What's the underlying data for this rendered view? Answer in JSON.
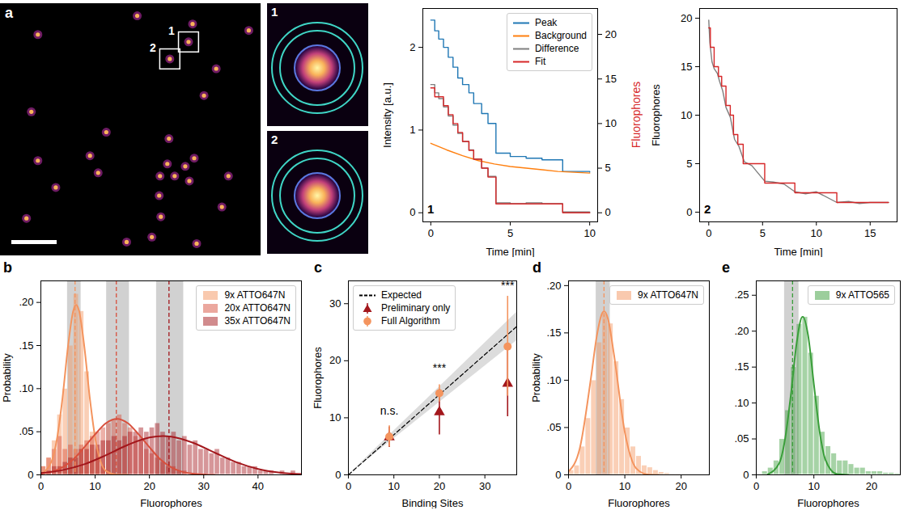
{
  "chart_data": [
    {
      "type": "image",
      "panel": "a",
      "tick_labels": false,
      "xlim": [
        0,
        320
      ],
      "ylim": [
        0,
        310
      ],
      "points": {
        "x": [
          168,
          236,
          305,
          46,
          231,
          208,
          265,
          250,
          38,
          130,
          207,
          110,
          46,
          120,
          238,
          205,
          227,
          196,
          214,
          232,
          68,
          195,
          280,
          272,
          32,
          197,
          186,
          155,
          241
        ],
        "y": [
          295,
          285,
          277,
          272,
          263,
          242,
          230,
          197,
          177,
          152,
          144,
          123,
          117,
          102,
          120,
          113,
          110,
          98,
          98,
          92,
          84,
          74,
          98,
          60,
          46,
          48,
          23,
          17,
          15
        ]
      },
      "boxes": [
        {
          "label": "1",
          "x": 231,
          "y": 263
        },
        {
          "label": "2",
          "x": 208,
          "y": 242
        }
      ],
      "insets": [
        "1",
        "2"
      ]
    },
    {
      "type": "line",
      "label": "1",
      "xlabel": "Time [min]",
      "ylabel": "Intensity [a.u.]",
      "y2label": "Fluorophores",
      "xlim": [
        -0.5,
        10.5
      ],
      "xticks": [
        0,
        5,
        10
      ],
      "ylim": [
        -0.11,
        2.47
      ],
      "yticks": [
        0,
        1,
        2
      ],
      "y2lim": [
        -1.02,
        22.9
      ],
      "y2ticks": [
        0,
        5,
        10,
        15,
        20
      ],
      "legend": "top-right",
      "series": [
        {
          "name": "Peak",
          "color": "#1f77b4",
          "line_style": "step",
          "x": [
            0,
            0.25,
            0.5,
            0.8,
            1.1,
            1.4,
            1.7,
            2.0,
            2.4,
            2.7,
            3.2,
            3.6,
            4.1,
            5.0,
            6.0,
            7.0,
            8.3,
            10.0
          ],
          "values": [
            2.33,
            2.2,
            2.1,
            2.0,
            1.88,
            1.76,
            1.63,
            1.55,
            1.45,
            1.32,
            1.2,
            1.08,
            0.72,
            0.68,
            0.66,
            0.64,
            0.5,
            0.49
          ]
        },
        {
          "name": "Background",
          "color": "#ff7f0e",
          "line_style": "solid",
          "x": [
            0,
            0.5,
            1,
            2,
            3,
            4,
            5,
            6,
            7,
            8,
            9,
            10
          ],
          "values": [
            0.84,
            0.8,
            0.76,
            0.69,
            0.63,
            0.59,
            0.56,
            0.54,
            0.52,
            0.5,
            0.49,
            0.48
          ]
        },
        {
          "name": "Difference",
          "color": "#7f7f7f",
          "line_style": "step",
          "x": [
            0,
            0.25,
            0.5,
            0.8,
            1.1,
            1.4,
            1.7,
            2.0,
            2.4,
            2.7,
            3.2,
            3.6,
            4.1,
            5.0,
            6.0,
            7.0,
            8.3,
            10.0
          ],
          "values": [
            1.55,
            1.45,
            1.38,
            1.28,
            1.17,
            1.06,
            0.96,
            0.86,
            0.76,
            0.65,
            0.54,
            0.44,
            0.12,
            0.11,
            0.12,
            0.11,
            0.01,
            0.0
          ]
        },
        {
          "name": "Fit",
          "color": "#d62728",
          "line_style": "step",
          "axis": "y2",
          "x": [
            0,
            0.25,
            0.5,
            0.8,
            1.1,
            1.4,
            1.7,
            2.0,
            2.4,
            2.7,
            3.2,
            3.6,
            4.1,
            8.3,
            10.0
          ],
          "values": [
            14,
            13,
            13,
            12,
            11,
            10,
            9,
            8,
            7,
            6,
            5,
            4,
            1,
            0,
            0
          ]
        }
      ]
    },
    {
      "type": "line",
      "label": "2",
      "xlabel": "Time [min]",
      "ylabel": "Fluorophores",
      "xlim": [
        -0.85,
        17.5
      ],
      "xticks": [
        0,
        5,
        10,
        15
      ],
      "ylim": [
        -1,
        21
      ],
      "yticks": [
        0,
        5,
        10,
        15,
        20
      ],
      "series": [
        {
          "color": "#7f7f7f",
          "line_style": "solid",
          "x": [
            0,
            0.1,
            0.3,
            0.5,
            0.8,
            1.0,
            1.3,
            1.6,
            2.0,
            2.4,
            2.8,
            3.3,
            4.0,
            5.2,
            6.0,
            7.0,
            8.0,
            9.0,
            10.0,
            11.9,
            13.0,
            14.0,
            15.0,
            16.7
          ],
          "values": [
            19.8,
            17.5,
            15.5,
            14.8,
            14.3,
            13.5,
            12.5,
            10.8,
            9.8,
            7.5,
            6.8,
            5.2,
            4.8,
            3.2,
            3.1,
            2.9,
            2.1,
            1.9,
            2.1,
            1.0,
            1.1,
            0.9,
            1.0,
            1.0
          ]
        },
        {
          "color": "#d62728",
          "line_style": "step",
          "x": [
            0,
            0.15,
            0.5,
            0.9,
            1.2,
            1.6,
            2.0,
            2.3,
            2.7,
            3.2,
            5.2,
            8.0,
            11.9,
            16.7
          ],
          "values": [
            19,
            17,
            15,
            14,
            13,
            11,
            10,
            8,
            7,
            5,
            3,
            2,
            1,
            1
          ]
        }
      ]
    },
    {
      "type": "histogram",
      "panel": "b",
      "xlabel": "Fluorophores",
      "ylabel": "Probability",
      "xlim": [
        0,
        48
      ],
      "xticks": [
        0,
        10,
        20,
        30,
        40
      ],
      "ylim": [
        0,
        0.225
      ],
      "yticks": [
        0,
        {
          "value": 0.05,
          "label": ".05"
        },
        {
          "value": 0.1,
          "label": ".10"
        },
        {
          "value": 0.15,
          "label": ".15"
        },
        {
          "value": 0.2,
          "label": ".20"
        }
      ],
      "legend": "top-right",
      "bins": [
        0,
        1,
        2,
        3,
        4,
        5,
        6,
        7,
        8,
        9,
        10,
        11,
        12,
        13,
        14,
        15,
        16,
        17,
        18,
        19,
        20,
        21,
        22,
        23,
        24,
        25,
        26,
        27,
        28,
        29,
        30,
        31,
        32,
        33,
        34,
        35,
        36,
        37,
        38,
        39,
        40,
        41,
        42,
        43,
        44,
        45,
        46,
        47,
        48
      ],
      "series": [
        {
          "name": "9x ATTO647N",
          "color": "#f4945e",
          "values": [
            0.01,
            0.02,
            0.04,
            0.07,
            0.1,
            0.15,
            0.21,
            0.19,
            0.12,
            0.05,
            0.03,
            0.01,
            0.005,
            0,
            0,
            0,
            0,
            0,
            0,
            0,
            0,
            0,
            0,
            0,
            0,
            0,
            0,
            0,
            0,
            0,
            0,
            0,
            0,
            0,
            0,
            0,
            0,
            0,
            0,
            0,
            0,
            0,
            0,
            0,
            0,
            0,
            0,
            0
          ],
          "fit": {
            "x": [
              0,
              2,
              3,
              4,
              5,
              6,
              6.5,
              7,
              8,
              9,
              10,
              12,
              14,
              16
            ],
            "values": [
              0.001,
              0.016,
              0.043,
              0.09,
              0.149,
              0.191,
              0.197,
              0.191,
              0.149,
              0.09,
              0.043,
              0.0045,
              0.0002,
              0
            ]
          },
          "reference": 6.3,
          "reference_band": [
            4.9,
            7.4
          ]
        },
        {
          "name": "20x ATTO647N",
          "color": "#d8503d",
          "values": [
            0.01,
            0.02,
            0.03,
            0.045,
            0.03,
            0.035,
            0.03,
            0.035,
            0.04,
            0.045,
            0.05,
            0.055,
            0.06,
            0.065,
            0.07,
            0.06,
            0.055,
            0.045,
            0.04,
            0.03,
            0.025,
            0.02,
            0.015,
            0.01,
            0.01,
            0.005,
            0.005,
            0,
            0,
            0,
            0,
            0,
            0,
            0,
            0,
            0,
            0,
            0,
            0,
            0,
            0,
            0,
            0,
            0,
            0,
            0,
            0,
            0
          ],
          "fit": {
            "x": [
              0,
              2,
              4,
              6,
              8,
              10,
              12,
              14,
              16,
              18,
              20,
              22,
              24,
              26,
              28,
              30,
              32
            ],
            "values": [
              0.0013,
              0.0036,
              0.0088,
              0.018,
              0.032,
              0.047,
              0.06,
              0.065,
              0.06,
              0.047,
              0.032,
              0.018,
              0.0088,
              0.0036,
              0.0013,
              0.0004,
              0.0001
            ]
          },
          "reference": 13.9,
          "reference_band": [
            12.1,
            16.3
          ]
        },
        {
          "name": "35x ATTO647N",
          "color": "#a3171c",
          "values": [
            0,
            0.005,
            0.01,
            0.01,
            0.015,
            0.02,
            0.02,
            0.03,
            0.03,
            0.035,
            0.035,
            0.04,
            0.04,
            0.045,
            0.04,
            0.045,
            0.05,
            0.05,
            0.055,
            0.05,
            0.055,
            0.06,
            0.05,
            0.045,
            0.05,
            0.04,
            0.045,
            0.035,
            0.04,
            0.03,
            0.03,
            0.025,
            0.03,
            0.02,
            0.02,
            0.015,
            0.015,
            0.01,
            0.01,
            0.01,
            0.005,
            0.005,
            0.005,
            0,
            0.005,
            0,
            0.005,
            0
          ],
          "fit": {
            "x": [
              0,
              4,
              8,
              12,
              16,
              20,
              22.5,
              24,
              28,
              32,
              36,
              40,
              44,
              48
            ],
            "values": [
              0.002,
              0.0055,
              0.0123,
              0.0228,
              0.0347,
              0.0433,
              0.045,
              0.0444,
              0.0373,
              0.0258,
              0.0146,
              0.0068,
              0.0026,
              0.0008
            ]
          },
          "reference": 23.6,
          "reference_band": [
            21.3,
            26.3
          ]
        }
      ]
    },
    {
      "type": "scatter",
      "panel": "c",
      "xlabel": "Binding Sites",
      "ylabel": "Fluorophores",
      "xlim": [
        0,
        37
      ],
      "xticks": [
        0,
        10,
        20,
        30
      ],
      "ylim": [
        0,
        34
      ],
      "yticks": [
        0,
        10,
        20,
        30
      ],
      "legend": "top-left",
      "series": [
        {
          "name": "Expected",
          "type": "line",
          "line_style": "dashed",
          "color": "#000000",
          "x": [
            0,
            37
          ],
          "values": [
            0,
            26
          ],
          "band_low": [
            0,
            23.5
          ],
          "band_high": [
            0,
            28.5
          ]
        },
        {
          "name": "Preliminary only",
          "marker": "triangle",
          "color": "#a3171c",
          "x": [
            9,
            20,
            35
          ],
          "values": [
            6.6,
            11,
            16
          ],
          "error_low": [
            4.8,
            7,
            10.2
          ],
          "error_high": [
            8.4,
            15,
            22
          ]
        },
        {
          "name": "Full Algorithm",
          "marker": "circle",
          "color": "#f4945e",
          "x": [
            9,
            20,
            35
          ],
          "values": [
            6.7,
            14.3,
            22.5
          ],
          "error_low": [
            4.9,
            12.8,
            13.8
          ],
          "error_high": [
            8.6,
            15.8,
            31.3
          ]
        }
      ],
      "annotations": [
        {
          "text": "n.s.",
          "x": 9,
          "y": 10.5
        },
        {
          "text": "***",
          "x": 20,
          "y": 18
        },
        {
          "text": "***",
          "x": 35,
          "y": 32.5
        }
      ]
    },
    {
      "type": "histogram",
      "panel": "d",
      "xlabel": "Fluorophores",
      "ylabel": "Probability",
      "xlim": [
        0,
        25
      ],
      "xticks": [
        0,
        10,
        20
      ],
      "ylim": [
        0,
        0.205
      ],
      "yticks": [
        0,
        {
          "value": 0.05,
          "label": ".05"
        },
        {
          "value": 0.1,
          "label": ".10"
        },
        {
          "value": 0.15,
          "label": ".15"
        },
        {
          "value": 0.2,
          "label": ".20"
        }
      ],
      "legend": "top-right",
      "bins": [
        0,
        1,
        2,
        3,
        4,
        5,
        6,
        7,
        8,
        9,
        10,
        11,
        12,
        13,
        14,
        15,
        16,
        17,
        18,
        19,
        20,
        21,
        22,
        23,
        24,
        25
      ],
      "series": [
        {
          "name": "9x ATTO647N",
          "color": "#f4945e",
          "values": [
            0.005,
            0.01,
            0.03,
            0.06,
            0.1,
            0.14,
            0.17,
            0.16,
            0.12,
            0.08,
            0.05,
            0.03,
            0.02,
            0.01,
            0.008,
            0.005,
            0.003,
            0.002,
            0.001,
            0.001,
            0,
            0,
            0,
            0,
            0
          ],
          "fit": {
            "x": [
              0,
              2,
              4,
              5,
              6,
              6.3,
              7,
              8,
              10,
              12,
              14,
              16
            ],
            "values": [
              0.0034,
              0.028,
              0.103,
              0.146,
              0.171,
              0.173,
              0.165,
              0.13,
              0.045,
              0.007,
              0.0005,
              0
            ]
          },
          "reference": 6.3,
          "reference_band": [
            4.9,
            7.4
          ]
        }
      ]
    },
    {
      "type": "histogram",
      "panel": "e",
      "xlabel": "Fluorophores",
      "xlim": [
        0,
        25
      ],
      "xticks": [
        0,
        10,
        20
      ],
      "ylim": [
        0,
        0.27
      ],
      "yticks": [
        0,
        {
          "value": 0.05,
          "label": ".05"
        },
        {
          "value": 0.1,
          "label": ".10"
        },
        {
          "value": 0.15,
          "label": ".15"
        },
        {
          "value": 0.2,
          "label": ".20"
        },
        {
          "value": 0.25,
          "label": ".25"
        }
      ],
      "legend": "top-right",
      "bins": [
        0,
        1,
        2,
        3,
        4,
        5,
        6,
        7,
        8,
        9,
        10,
        11,
        12,
        13,
        14,
        15,
        16,
        17,
        18,
        19,
        20,
        21,
        22,
        23,
        24,
        25
      ],
      "series": [
        {
          "name": "9x ATTO565",
          "color": "#3a9e3a",
          "values": [
            0,
            0.005,
            0.01,
            0.02,
            0.05,
            0.09,
            0.15,
            0.21,
            0.22,
            0.17,
            0.11,
            0.06,
            0.04,
            0.03,
            0.02,
            0.02,
            0.015,
            0.01,
            0.01,
            0.005,
            0.005,
            0.005,
            0.003,
            0.003,
            0.002
          ],
          "fit": {
            "x": [
              2,
              4,
              5,
              6,
              7,
              8,
              8.1,
              9,
              10,
              11,
              12,
              14,
              16
            ],
            "values": [
              0.0007,
              0.0165,
              0.05,
              0.111,
              0.183,
              0.22,
              0.22,
              0.194,
              0.126,
              0.06,
              0.021,
              0.001,
              0
            ]
          },
          "reference": 6.3,
          "reference_band": [
            4.9,
            7.4
          ]
        }
      ]
    }
  ]
}
